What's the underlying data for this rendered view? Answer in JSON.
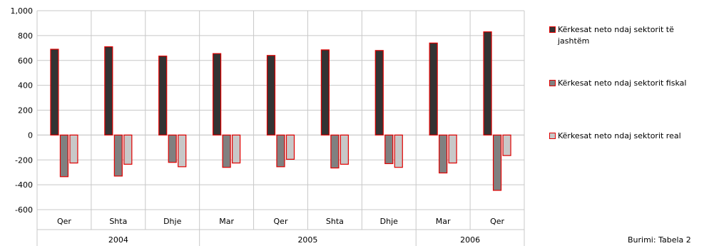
{
  "chart_data": {
    "type": "bar",
    "categories": [
      "Qer",
      "Shta",
      "Dhje",
      "Mar",
      "Qer",
      "Shta",
      "Dhje",
      "Mar",
      "Qer"
    ],
    "year_groups": [
      {
        "label": "2004",
        "start": 0,
        "end": 2
      },
      {
        "label": "2005",
        "start": 3,
        "end": 6
      },
      {
        "label": "2006",
        "start": 7,
        "end": 8
      }
    ],
    "series": [
      {
        "name": "Kërkesat neto ndaj sektorit të jashtëm",
        "color": "#333333",
        "values": [
          690,
          710,
          635,
          655,
          640,
          685,
          680,
          740,
          830
        ]
      },
      {
        "name": "Kërkesat neto ndaj sektorit fiskal",
        "color": "#808080",
        "values": [
          -335,
          -330,
          -220,
          -260,
          -255,
          -265,
          -230,
          -305,
          -445
        ]
      },
      {
        "name": "Kërkesat neto ndaj sektorit real",
        "color": "#c8c8c8",
        "values": [
          -225,
          -235,
          -255,
          -225,
          -195,
          -235,
          -260,
          -225,
          -165
        ]
      }
    ],
    "bar_border_color": "#e00000",
    "ylim": [
      -600,
      1000
    ],
    "yticks": [
      -600,
      -400,
      -200,
      0,
      200,
      400,
      600,
      800,
      "1,000"
    ],
    "grid": true,
    "legend_position": "right",
    "title": "",
    "xlabel": "",
    "ylabel": ""
  },
  "source_note": "Burimi: Tabela 2"
}
